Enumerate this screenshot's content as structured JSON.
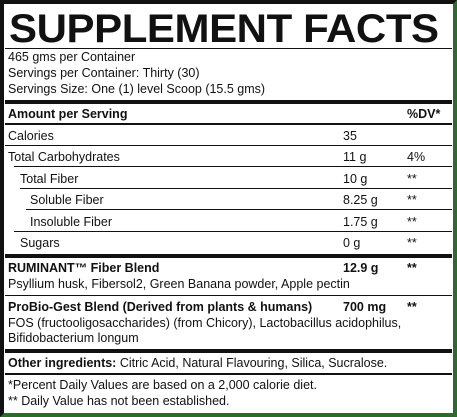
{
  "panel": {
    "title": "SUPPLEMENT FACTS",
    "container_size": "465 gms per Container",
    "servings_per_container": "Servings per Container: Thirty (30)",
    "serving_size": "Servings Size: One (1) level Scoop (15.5 gms)",
    "header": {
      "amount": "Amount per Serving",
      "dv": "%DV*"
    },
    "rows": [
      {
        "name": "Calories",
        "amount": "35",
        "dv": ""
      },
      {
        "name": "Total Carbohydrates",
        "amount": "11 g",
        "dv": "4%"
      },
      {
        "name": "Total Fiber",
        "amount": "10 g",
        "dv": "**"
      },
      {
        "name": "Soluble Fiber",
        "amount": "8.25 g",
        "dv": "**"
      },
      {
        "name": "Insoluble Fiber",
        "amount": "1.75 g",
        "dv": "**"
      },
      {
        "name": "Sugars",
        "amount": "0 g",
        "dv": "**"
      }
    ],
    "blend1": {
      "name": "RUMINANT™ Fiber Blend",
      "amount": "12.9 g",
      "dv": "**",
      "desc": "Psyllium husk, Fibersol2, Green Banana powder, Apple pectin"
    },
    "blend2": {
      "name": "ProBio-Gest Blend (Derived from plants & humans)",
      "amount": "700 mg",
      "dv": "**",
      "desc1": "FOS (fructooligosaccharides) (from Chicory), Lactobacillus acidophilus,",
      "desc2": "Bifidobacterium longum"
    },
    "other": {
      "label": "Other ingredients:",
      "value": " Citric Acid, Natural Flavouring, Silica, Sucralose."
    },
    "footnote1": "*Percent Daily Values are based on a 2,000 calorie diet.",
    "footnote2": "** Daily Value has not been established."
  }
}
